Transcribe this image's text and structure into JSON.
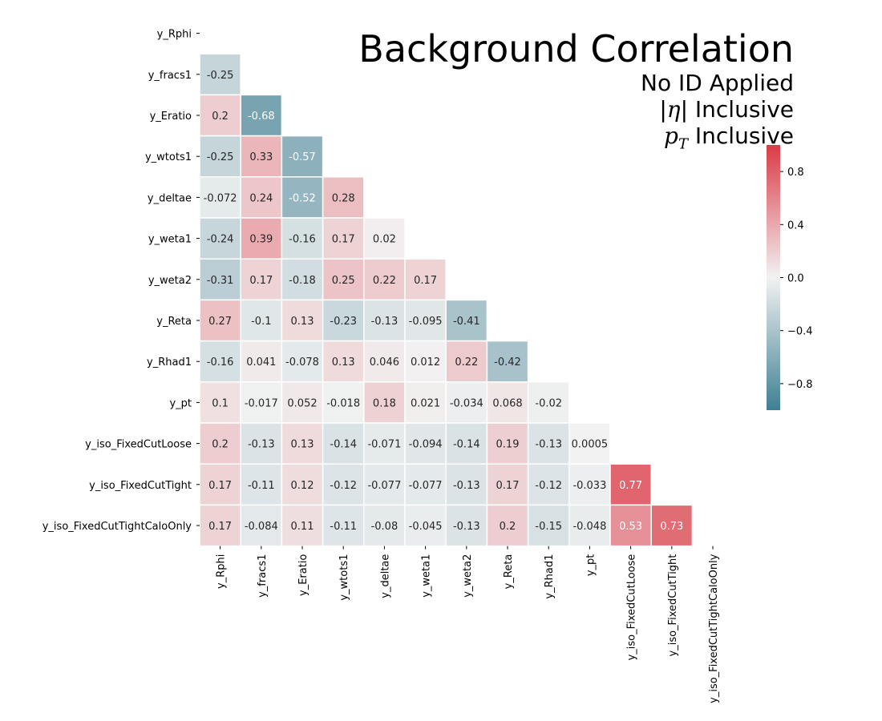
{
  "chart_data": {
    "type": "heatmap",
    "title": "Background Correlation",
    "subtitle_lines": [
      "No ID Applied",
      "|η| Inclusive",
      "p_T Inclusive"
    ],
    "subtitle_parts": {
      "line2_pre": "|",
      "line2_sym": "η",
      "line2_post": "| Inclusive",
      "line3_sym": "p",
      "line3_sub": "T",
      "line3_post": " Inclusive"
    },
    "variables": [
      "y_Rphi",
      "y_fracs1",
      "y_Eratio",
      "y_wtots1",
      "y_deltae",
      "y_weta1",
      "y_weta2",
      "y_Reta",
      "y_Rhad1",
      "y_pt",
      "y_iso_FixedCutLoose",
      "y_iso_FixedCutTight",
      "y_iso_FixedCutTightCaloOnly"
    ],
    "mask": "upper triangle and diagonal",
    "values": [
      [],
      [
        "-0.25"
      ],
      [
        "0.2",
        "-0.68"
      ],
      [
        "-0.25",
        "0.33",
        "-0.57"
      ],
      [
        "-0.072",
        "0.24",
        "-0.52",
        "0.28"
      ],
      [
        "-0.24",
        "0.39",
        "-0.16",
        "0.17",
        "0.02"
      ],
      [
        "-0.31",
        "0.17",
        "-0.18",
        "0.25",
        "0.22",
        "0.17"
      ],
      [
        "0.27",
        "-0.1",
        "0.13",
        "-0.23",
        "-0.13",
        "-0.095",
        "-0.41"
      ],
      [
        "-0.16",
        "0.041",
        "-0.078",
        "0.13",
        "0.046",
        "0.012",
        "0.22",
        "-0.42"
      ],
      [
        "0.1",
        "-0.017",
        "0.052",
        "-0.018",
        "0.18",
        "0.021",
        "-0.034",
        "0.068",
        "-0.02"
      ],
      [
        "0.2",
        "-0.13",
        "0.13",
        "-0.14",
        "-0.071",
        "-0.094",
        "-0.14",
        "0.19",
        "-0.13",
        "0.0005"
      ],
      [
        "0.17",
        "-0.11",
        "0.12",
        "-0.12",
        "-0.077",
        "-0.077",
        "-0.13",
        "0.17",
        "-0.12",
        "-0.033",
        "0.77"
      ],
      [
        "0.17",
        "-0.084",
        "0.11",
        "-0.11",
        "-0.08",
        "-0.045",
        "-0.13",
        "0.2",
        "-0.15",
        "-0.048",
        "0.53",
        "0.73"
      ]
    ],
    "colorbar": {
      "range": [
        -1,
        1
      ],
      "ticks": [
        -0.8,
        -0.4,
        0.0,
        0.4,
        0.8
      ],
      "tick_labels": [
        "−0.8",
        "−0.4",
        "0.0",
        "0.4",
        "0.8"
      ]
    },
    "colors": {
      "negative": "#3f7f93",
      "neutral": "#f2f2f2",
      "positive": "#da3b46"
    },
    "grid": false,
    "legend_placement": "right"
  }
}
